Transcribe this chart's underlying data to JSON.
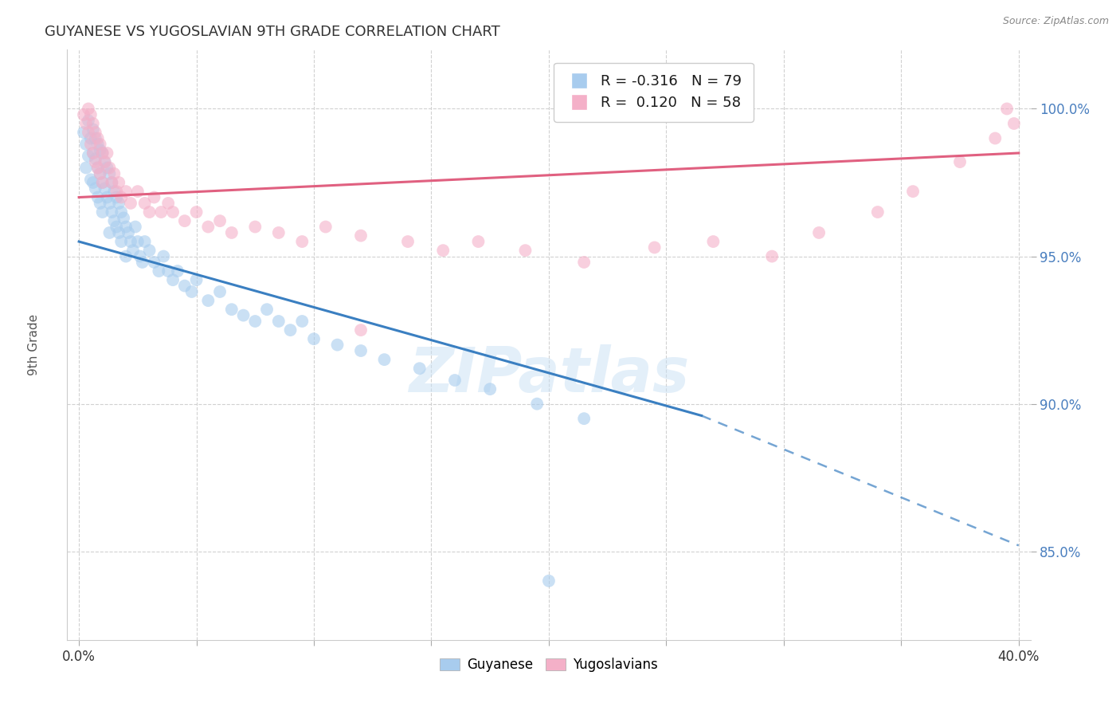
{
  "title": "GUYANESE VS YUGOSLAVIAN 9TH GRADE CORRELATION CHART",
  "source": "Source: ZipAtlas.com",
  "ylabel": "9th Grade",
  "yticks": [
    "85.0%",
    "90.0%",
    "95.0%",
    "100.0%"
  ],
  "ytick_vals": [
    0.85,
    0.9,
    0.95,
    1.0
  ],
  "xtick_vals": [
    0.0,
    0.05,
    0.1,
    0.15,
    0.2,
    0.25,
    0.3,
    0.35,
    0.4
  ],
  "xlim": [
    -0.005,
    0.405
  ],
  "ylim": [
    0.82,
    1.02
  ],
  "watermark": "ZIPatlas",
  "blue_color": "#A8CCEE",
  "pink_color": "#F4B0C8",
  "blue_line_color": "#3A7FC1",
  "pink_line_color": "#E06080",
  "blue_scatter": [
    [
      0.002,
      0.992
    ],
    [
      0.003,
      0.988
    ],
    [
      0.003,
      0.98
    ],
    [
      0.004,
      0.996
    ],
    [
      0.004,
      0.984
    ],
    [
      0.005,
      0.99
    ],
    [
      0.005,
      0.976
    ],
    [
      0.006,
      0.993
    ],
    [
      0.006,
      0.985
    ],
    [
      0.006,
      0.975
    ],
    [
      0.007,
      0.99
    ],
    [
      0.007,
      0.983
    ],
    [
      0.007,
      0.973
    ],
    [
      0.008,
      0.988
    ],
    [
      0.008,
      0.98
    ],
    [
      0.008,
      0.97
    ],
    [
      0.009,
      0.986
    ],
    [
      0.009,
      0.978
    ],
    [
      0.009,
      0.968
    ],
    [
      0.01,
      0.985
    ],
    [
      0.01,
      0.975
    ],
    [
      0.01,
      0.965
    ],
    [
      0.011,
      0.982
    ],
    [
      0.011,
      0.973
    ],
    [
      0.012,
      0.98
    ],
    [
      0.012,
      0.97
    ],
    [
      0.013,
      0.978
    ],
    [
      0.013,
      0.968
    ],
    [
      0.013,
      0.958
    ],
    [
      0.014,
      0.975
    ],
    [
      0.014,
      0.965
    ],
    [
      0.015,
      0.972
    ],
    [
      0.015,
      0.962
    ],
    [
      0.016,
      0.97
    ],
    [
      0.016,
      0.96
    ],
    [
      0.017,
      0.968
    ],
    [
      0.017,
      0.958
    ],
    [
      0.018,
      0.965
    ],
    [
      0.018,
      0.955
    ],
    [
      0.019,
      0.963
    ],
    [
      0.02,
      0.96
    ],
    [
      0.02,
      0.95
    ],
    [
      0.021,
      0.958
    ],
    [
      0.022,
      0.955
    ],
    [
      0.023,
      0.952
    ],
    [
      0.024,
      0.96
    ],
    [
      0.025,
      0.955
    ],
    [
      0.026,
      0.95
    ],
    [
      0.027,
      0.948
    ],
    [
      0.028,
      0.955
    ],
    [
      0.03,
      0.952
    ],
    [
      0.032,
      0.948
    ],
    [
      0.034,
      0.945
    ],
    [
      0.036,
      0.95
    ],
    [
      0.038,
      0.945
    ],
    [
      0.04,
      0.942
    ],
    [
      0.042,
      0.945
    ],
    [
      0.045,
      0.94
    ],
    [
      0.048,
      0.938
    ],
    [
      0.05,
      0.942
    ],
    [
      0.055,
      0.935
    ],
    [
      0.06,
      0.938
    ],
    [
      0.065,
      0.932
    ],
    [
      0.07,
      0.93
    ],
    [
      0.075,
      0.928
    ],
    [
      0.08,
      0.932
    ],
    [
      0.085,
      0.928
    ],
    [
      0.09,
      0.925
    ],
    [
      0.095,
      0.928
    ],
    [
      0.1,
      0.922
    ],
    [
      0.11,
      0.92
    ],
    [
      0.12,
      0.918
    ],
    [
      0.13,
      0.915
    ],
    [
      0.145,
      0.912
    ],
    [
      0.16,
      0.908
    ],
    [
      0.175,
      0.905
    ],
    [
      0.195,
      0.9
    ],
    [
      0.215,
      0.895
    ],
    [
      0.2,
      0.84
    ]
  ],
  "pink_scatter": [
    [
      0.002,
      0.998
    ],
    [
      0.003,
      0.995
    ],
    [
      0.004,
      1.0
    ],
    [
      0.004,
      0.992
    ],
    [
      0.005,
      0.998
    ],
    [
      0.005,
      0.988
    ],
    [
      0.006,
      0.995
    ],
    [
      0.006,
      0.985
    ],
    [
      0.007,
      0.992
    ],
    [
      0.007,
      0.982
    ],
    [
      0.008,
      0.99
    ],
    [
      0.008,
      0.98
    ],
    [
      0.009,
      0.988
    ],
    [
      0.009,
      0.978
    ],
    [
      0.01,
      0.985
    ],
    [
      0.01,
      0.975
    ],
    [
      0.011,
      0.982
    ],
    [
      0.012,
      0.985
    ],
    [
      0.013,
      0.98
    ],
    [
      0.014,
      0.975
    ],
    [
      0.015,
      0.978
    ],
    [
      0.016,
      0.972
    ],
    [
      0.017,
      0.975
    ],
    [
      0.018,
      0.97
    ],
    [
      0.02,
      0.972
    ],
    [
      0.022,
      0.968
    ],
    [
      0.025,
      0.972
    ],
    [
      0.028,
      0.968
    ],
    [
      0.03,
      0.965
    ],
    [
      0.032,
      0.97
    ],
    [
      0.035,
      0.965
    ],
    [
      0.038,
      0.968
    ],
    [
      0.04,
      0.965
    ],
    [
      0.045,
      0.962
    ],
    [
      0.05,
      0.965
    ],
    [
      0.055,
      0.96
    ],
    [
      0.06,
      0.962
    ],
    [
      0.065,
      0.958
    ],
    [
      0.075,
      0.96
    ],
    [
      0.085,
      0.958
    ],
    [
      0.095,
      0.955
    ],
    [
      0.105,
      0.96
    ],
    [
      0.12,
      0.957
    ],
    [
      0.14,
      0.955
    ],
    [
      0.155,
      0.952
    ],
    [
      0.17,
      0.955
    ],
    [
      0.19,
      0.952
    ],
    [
      0.215,
      0.948
    ],
    [
      0.245,
      0.953
    ],
    [
      0.27,
      0.955
    ],
    [
      0.295,
      0.95
    ],
    [
      0.315,
      0.958
    ],
    [
      0.34,
      0.965
    ],
    [
      0.355,
      0.972
    ],
    [
      0.375,
      0.982
    ],
    [
      0.39,
      0.99
    ],
    [
      0.398,
      0.995
    ],
    [
      0.12,
      0.925
    ],
    [
      0.395,
      1.0
    ]
  ],
  "blue_line_solid": {
    "x0": 0.0,
    "y0": 0.955,
    "x1": 0.265,
    "y1": 0.896
  },
  "blue_line_dashed": {
    "x0": 0.265,
    "y0": 0.896,
    "x1": 0.4,
    "y1": 0.852
  },
  "pink_line": {
    "x0": 0.0,
    "y0": 0.97,
    "x1": 0.4,
    "y1": 0.985
  }
}
